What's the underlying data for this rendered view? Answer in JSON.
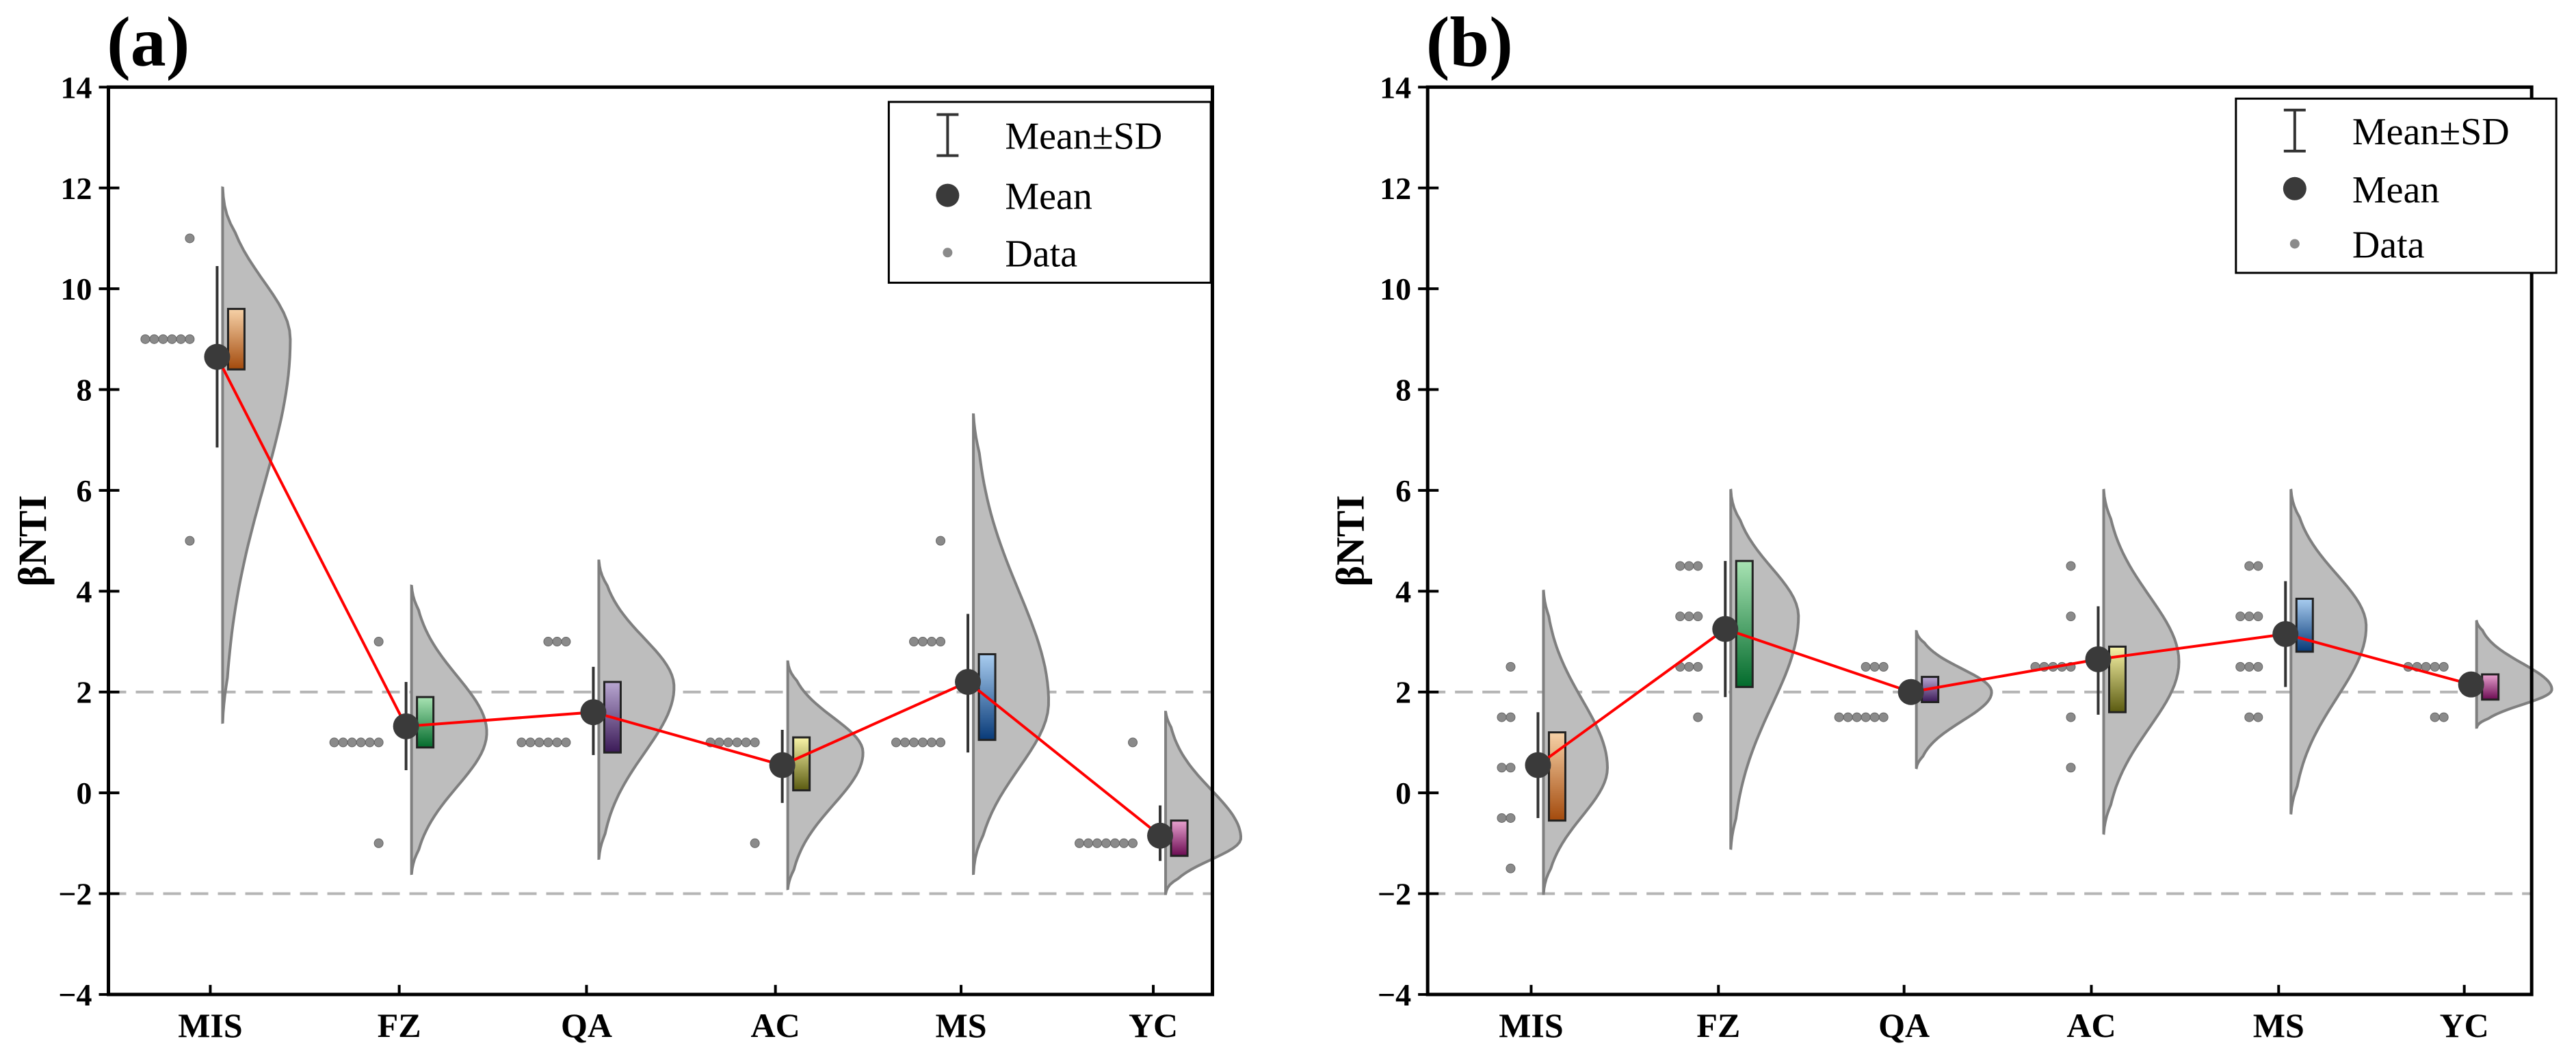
{
  "figure": {
    "legend_items": {
      "sd": "Mean±SD",
      "mean": "Mean",
      "data": "Data"
    }
  },
  "colors": {
    "background": "#ffffff",
    "violin_fill": "#bdbdbd",
    "violin_stroke": "#7f7f7f",
    "mean_dot": "#3a3a3a",
    "data_dot": "#8a8a8a",
    "trend_line": "#ff0000",
    "reference_line": "#b5b5b5",
    "box_colors": {
      "MIS": [
        "#f7d2a8",
        "#a34a0c"
      ],
      "FZ": [
        "#a8e3b3",
        "#036b2c"
      ],
      "QA": [
        "#b8a7d1",
        "#3b1a57"
      ],
      "AC": [
        "#f8f4a8",
        "#5a5a10"
      ],
      "MS": [
        "#a9cdf0",
        "#083a78"
      ],
      "YC": [
        "#e8a2cf",
        "#6b0b52"
      ]
    }
  },
  "chart_data": [
    {
      "panel": "(a)",
      "type": "violin",
      "ylabel": "βNTI",
      "ylim": [
        -4,
        14
      ],
      "yticks": [
        -4,
        -2,
        0,
        2,
        4,
        6,
        8,
        10,
        12,
        14
      ],
      "ytick_labels": [
        "−4",
        "−2",
        "0",
        "2",
        "4",
        "6",
        "8",
        "10",
        "12",
        "14"
      ],
      "reference_lines": [
        2,
        -2
      ],
      "legend_position": "top-right",
      "categories": [
        "MIS",
        "FZ",
        "QA",
        "AC",
        "MS",
        "YC"
      ],
      "series": [
        {
          "category": "MIS",
          "mean": 8.65,
          "sd_low": 6.85,
          "sd_high": 10.45,
          "box": [
            8.4,
            9.6
          ],
          "violin_range": [
            1.4,
            12.0
          ],
          "violin_peak": 9.0,
          "violin_width": 0.9,
          "points": [
            [
              11,
              1
            ],
            [
              9,
              6
            ],
            [
              5,
              1
            ]
          ]
        },
        {
          "category": "FZ",
          "mean": 1.32,
          "sd_low": 0.45,
          "sd_high": 2.2,
          "box": [
            0.9,
            1.9
          ],
          "violin_range": [
            -1.6,
            4.1
          ],
          "violin_peak": 1.2,
          "violin_width": 1.0,
          "points": [
            [
              3,
              1
            ],
            [
              1,
              6
            ],
            [
              -1,
              1
            ]
          ]
        },
        {
          "category": "QA",
          "mean": 1.6,
          "sd_low": 0.75,
          "sd_high": 2.5,
          "box": [
            0.8,
            2.2
          ],
          "violin_range": [
            -1.3,
            4.6
          ],
          "violin_peak": 2.1,
          "violin_width": 1.0,
          "points": [
            [
              3,
              3
            ],
            [
              1,
              6
            ]
          ]
        },
        {
          "category": "AC",
          "mean": 0.55,
          "sd_low": -0.2,
          "sd_high": 1.25,
          "box": [
            0.05,
            1.1
          ],
          "violin_range": [
            -1.9,
            2.6
          ],
          "violin_peak": 0.8,
          "violin_width": 1.0,
          "points": [
            [
              1,
              6
            ],
            [
              -1,
              1
            ]
          ]
        },
        {
          "category": "MS",
          "mean": 2.2,
          "sd_low": 0.8,
          "sd_high": 3.55,
          "box": [
            1.05,
            2.75
          ],
          "violin_range": [
            -1.6,
            7.5
          ],
          "violin_peak": 1.8,
          "violin_width": 1.0,
          "points": [
            [
              5,
              1
            ],
            [
              3,
              4
            ],
            [
              1,
              6
            ]
          ]
        },
        {
          "category": "YC",
          "mean": -0.85,
          "sd_low": -1.35,
          "sd_high": -0.25,
          "box": [
            -1.25,
            -0.55
          ],
          "violin_range": [
            -2.0,
            1.6
          ],
          "violin_peak": -0.9,
          "violin_width": 1.0,
          "points": [
            [
              1,
              1
            ],
            [
              -1,
              7
            ]
          ]
        }
      ]
    },
    {
      "panel": "(b)",
      "type": "violin",
      "ylabel": "βNTI",
      "ylim": [
        -4,
        14
      ],
      "yticks": [
        -4,
        -2,
        0,
        2,
        4,
        6,
        8,
        10,
        12,
        14
      ],
      "ytick_labels": [
        "−4",
        "−2",
        "0",
        "2",
        "4",
        "6",
        "8",
        "10",
        "12",
        "14"
      ],
      "reference_lines": [
        2,
        -2
      ],
      "legend_position": "top-right",
      "categories": [
        "MIS",
        "FZ",
        "QA",
        "AC",
        "MS",
        "YC"
      ],
      "series": [
        {
          "category": "MIS",
          "mean": 0.55,
          "sd_low": -0.5,
          "sd_high": 1.6,
          "box": [
            -0.55,
            1.2
          ],
          "violin_range": [
            -2.0,
            4.0
          ],
          "violin_peak": 0.5,
          "violin_width": 0.85,
          "points": [
            [
              2.5,
              1
            ],
            [
              1.5,
              2
            ],
            [
              0.5,
              2
            ],
            [
              -0.5,
              2
            ],
            [
              -1.5,
              1
            ]
          ]
        },
        {
          "category": "FZ",
          "mean": 3.25,
          "sd_low": 1.9,
          "sd_high": 4.6,
          "box": [
            2.1,
            4.6
          ],
          "violin_range": [
            -1.1,
            6.0
          ],
          "violin_peak": 3.5,
          "violin_width": 0.9,
          "points": [
            [
              4.5,
              3
            ],
            [
              3.5,
              3
            ],
            [
              2.5,
              3
            ],
            [
              1.5,
              1
            ]
          ]
        },
        {
          "category": "QA",
          "mean": 2.0,
          "sd_low": 1.75,
          "sd_high": 2.25,
          "box": [
            1.8,
            2.3
          ],
          "violin_range": [
            0.5,
            3.2
          ],
          "violin_peak": 2.0,
          "violin_width": 1.0,
          "points": [
            [
              2.5,
              3
            ],
            [
              1.5,
              6
            ]
          ]
        },
        {
          "category": "AC",
          "mean": 2.65,
          "sd_low": 1.55,
          "sd_high": 3.7,
          "box": [
            1.6,
            2.9
          ],
          "violin_range": [
            -0.8,
            6.0
          ],
          "violin_peak": 2.6,
          "violin_width": 1.0,
          "points": [
            [
              4.5,
              1
            ],
            [
              3.5,
              1
            ],
            [
              2.5,
              5
            ],
            [
              1.5,
              1
            ],
            [
              0.5,
              1
            ]
          ]
        },
        {
          "category": "MS",
          "mean": 3.15,
          "sd_low": 2.1,
          "sd_high": 4.2,
          "box": [
            2.8,
            3.85
          ],
          "violin_range": [
            -0.4,
            6.0
          ],
          "violin_peak": 3.3,
          "violin_width": 1.0,
          "points": [
            [
              4.5,
              2
            ],
            [
              3.5,
              3
            ],
            [
              2.5,
              3
            ],
            [
              1.5,
              2
            ]
          ]
        },
        {
          "category": "YC",
          "mean": 2.15,
          "sd_low": 1.9,
          "sd_high": 2.4,
          "box": [
            1.85,
            2.35
          ],
          "violin_range": [
            1.3,
            3.4
          ],
          "violin_peak": 2.05,
          "violin_width": 1.0,
          "points": [
            [
              2.5,
              5
            ],
            [
              1.5,
              2
            ]
          ]
        }
      ]
    }
  ]
}
